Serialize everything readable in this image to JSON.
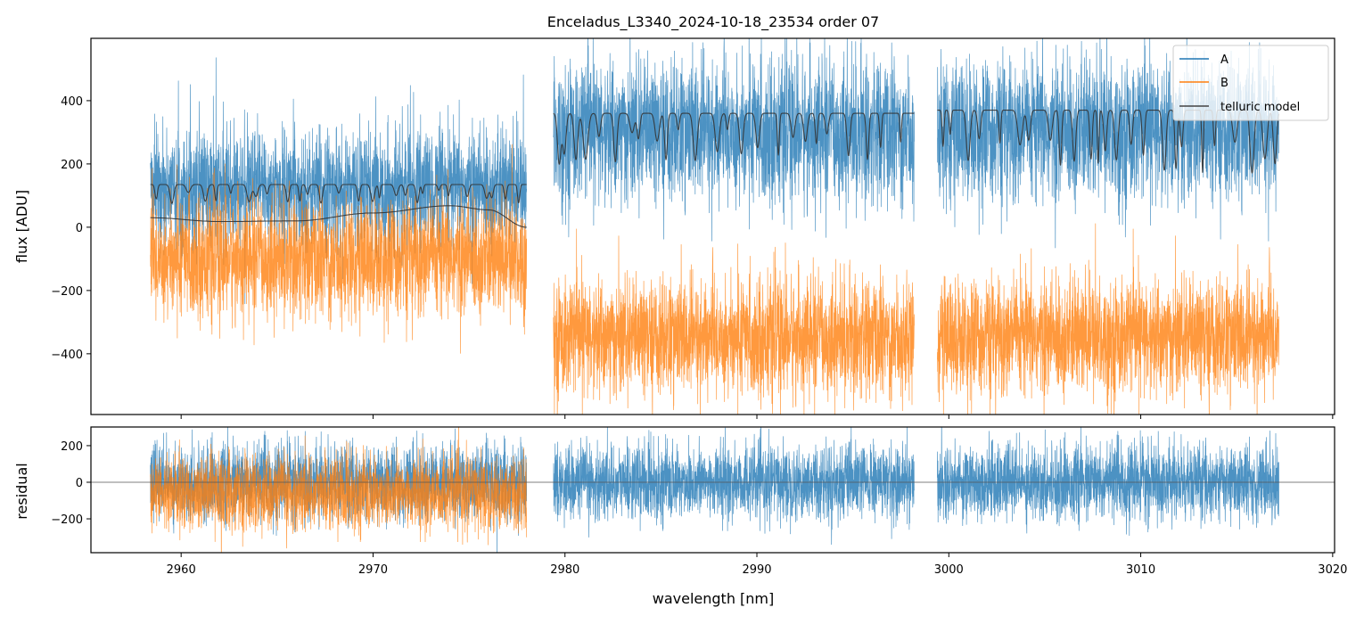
{
  "chart_data": {
    "type": "line",
    "title": "Enceladus_L3340_2024-10-18_23534  order 07",
    "xlabel": "wavelength [nm]",
    "xlim": [
      2955.3,
      3020.1
    ],
    "xticks": [
      2960,
      2970,
      2980,
      2990,
      3000,
      3010,
      3020
    ],
    "legend": {
      "placement": "top-right",
      "entries": [
        "A",
        "B",
        "telluric model"
      ]
    },
    "colors": {
      "A": "#1f77b4",
      "B": "#ff7f0e",
      "model": "#333333"
    },
    "segments": [
      [
        2958.4,
        2978.0
      ],
      [
        2979.4,
        2998.2
      ],
      [
        2999.4,
        3017.2
      ]
    ],
    "panels": [
      {
        "name": "flux",
        "ylabel": "flux [ADU]",
        "ylim": [
          -592,
          597
        ],
        "yticks": [
          -400,
          -200,
          0,
          200,
          400
        ],
        "series": [
          {
            "name": "A",
            "segment_levels": [
              120,
              300,
              300
            ],
            "noise": [
              90,
              110,
              110
            ]
          },
          {
            "name": "B",
            "segment_levels": [
              -100,
              -350,
              -350
            ],
            "noise": [
              90,
              90,
              90
            ]
          },
          {
            "name": "telluric model A",
            "segment_levels": [
              135,
              360,
              370
            ],
            "dip_depth": [
              60,
              170,
              200
            ]
          },
          {
            "name": "telluric model B",
            "x": [
              2958.4,
              2962,
              2966,
              2970,
              2974,
              2976,
              2978.0
            ],
            "y": [
              30,
              18,
              20,
              45,
              68,
              55,
              0
            ]
          }
        ]
      },
      {
        "name": "residual",
        "ylabel": "residual",
        "ylim": [
          -385,
          302
        ],
        "yticks": [
          -200,
          0,
          200
        ],
        "series": [
          {
            "name": "A",
            "segment_levels": [
              0,
              0,
              0
            ],
            "noise": [
              100,
              100,
              100
            ]
          },
          {
            "name": "B",
            "segment_levels": [
              -60,
              null,
              null
            ],
            "noise": [
              100,
              0,
              0
            ]
          }
        ]
      }
    ]
  }
}
